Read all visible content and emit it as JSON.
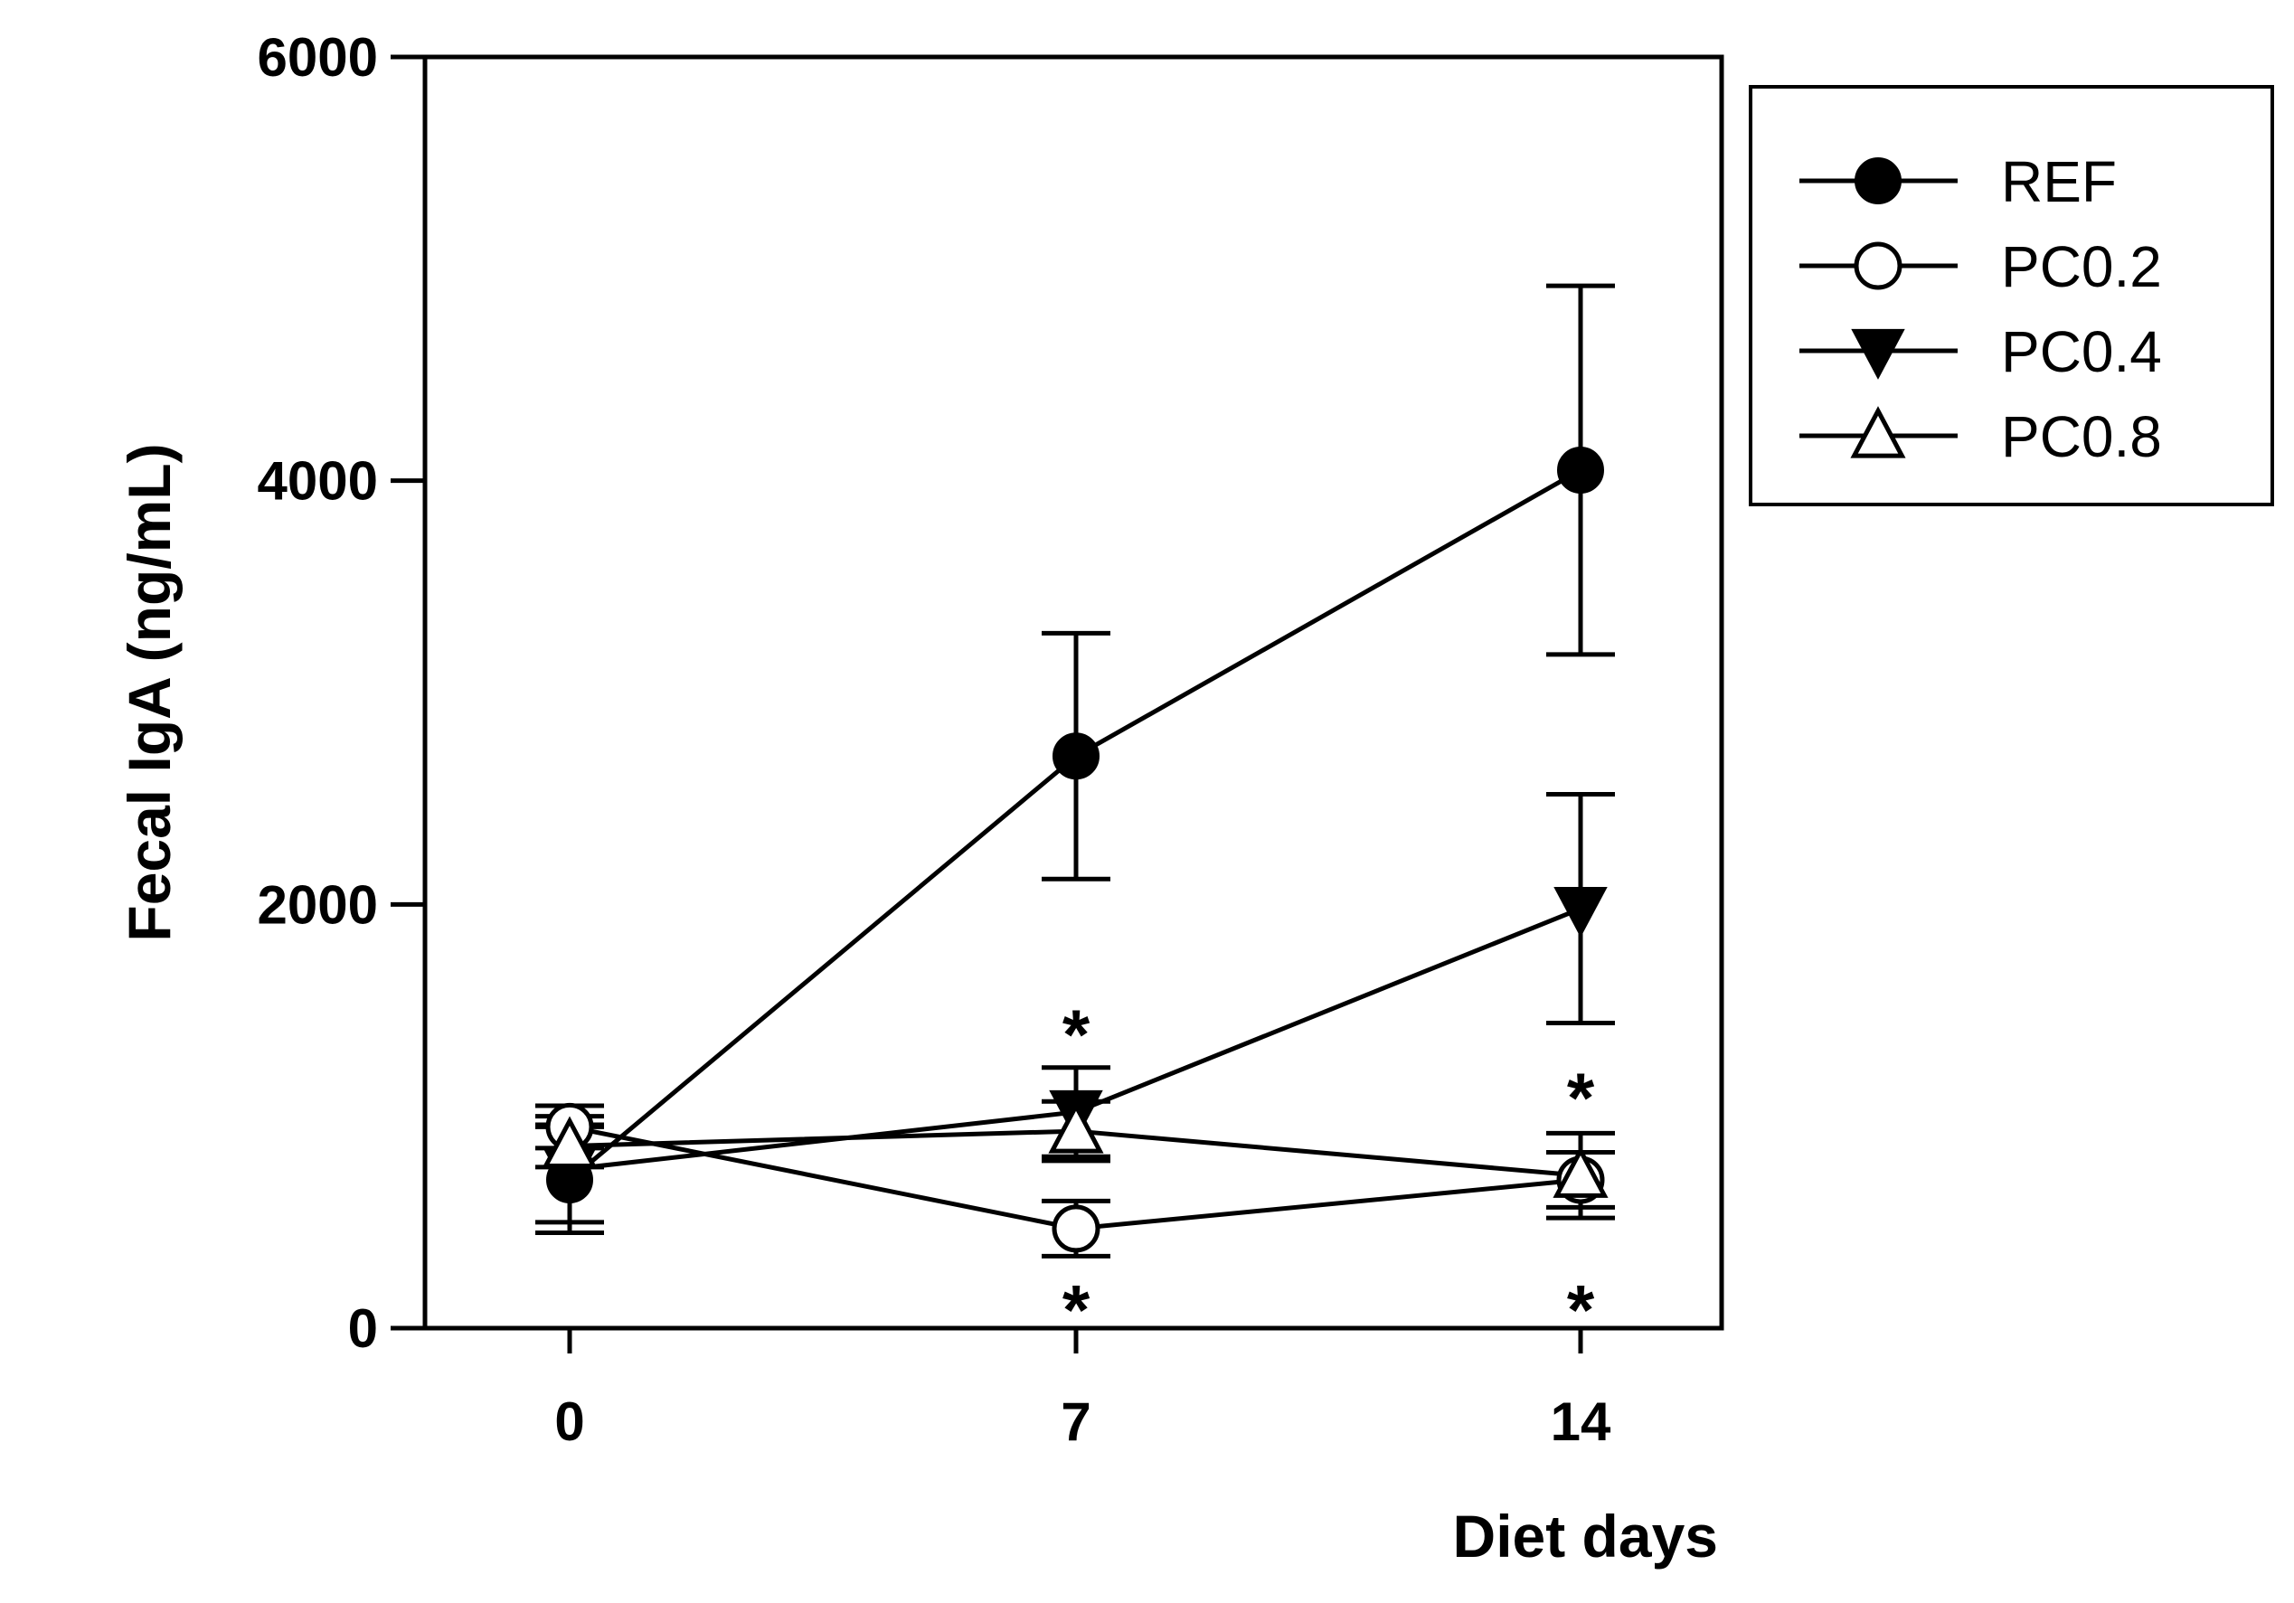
{
  "chart_data": {
    "type": "line",
    "title": "",
    "xlabel": "Diet days",
    "ylabel": "Fecal IgA  (ng/mL)",
    "x": [
      0,
      7,
      14
    ],
    "x_tick_labels": [
      "0",
      "7",
      "14"
    ],
    "y_ticks": [
      0,
      2000,
      4000,
      6000
    ],
    "y_tick_labels": [
      "0",
      "2000",
      "4000",
      "6000"
    ],
    "ylim": [
      0,
      6000
    ],
    "grid": false,
    "legend_position": "top-right outside",
    "series": [
      {
        "name": "REF",
        "marker": "filled-circle",
        "values": [
          700,
          2700,
          4050
        ],
        "errors": [
          250,
          580,
          870
        ]
      },
      {
        "name": "PC0.2",
        "marker": "open-circle",
        "values": [
          950,
          470,
          700
        ],
        "errors": [
          100,
          130,
          130
        ]
      },
      {
        "name": "PC0.4",
        "marker": "filled-triangle-down",
        "values": [
          750,
          1020,
          1980
        ],
        "errors": [
          250,
          210,
          540
        ]
      },
      {
        "name": "PC0.8",
        "marker": "open-triangle-up",
        "values": [
          860,
          930,
          720
        ],
        "errors": [
          100,
          140,
          200
        ]
      }
    ],
    "annotations": [
      {
        "text": "*",
        "x": 7,
        "y": 1400,
        "note": "above PC0.4 at day 7"
      },
      {
        "text": "*",
        "x": 7,
        "y": 100,
        "note": "below PC0.2 at day 7"
      },
      {
        "text": "*",
        "x": 14,
        "y": 1100,
        "note": "above PC0.8 at day 14"
      },
      {
        "text": "*",
        "x": 14,
        "y": 100,
        "note": "below PC0.2 at day 14"
      }
    ]
  }
}
